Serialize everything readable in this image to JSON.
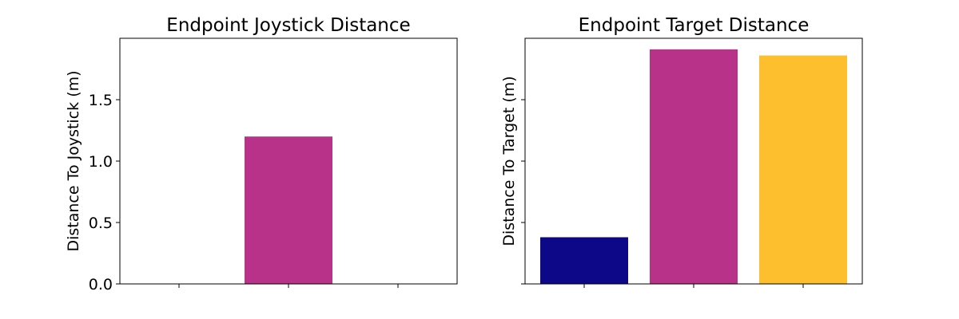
{
  "chart_data": [
    {
      "type": "bar",
      "title": "Endpoint Joystick Distance",
      "xlabel": "",
      "ylabel": "Distance To Joystick (m)",
      "categories": [
        "",
        "",
        ""
      ],
      "values": [
        0.0,
        1.2,
        0.0
      ],
      "colors": [
        "#0d0887",
        "#b83289",
        "#fdbf2d"
      ],
      "ylim": [
        0,
        2.0
      ],
      "yticks": [
        0.0,
        0.5,
        1.0,
        1.5
      ],
      "ytick_labels": [
        "0.0",
        "0.5",
        "1.0",
        "1.5"
      ],
      "grid": false,
      "legend": "none"
    },
    {
      "type": "bar",
      "title": "Endpoint Target Distance",
      "xlabel": "",
      "ylabel": "Distance To Target (m)",
      "categories": [
        "",
        "",
        ""
      ],
      "values": [
        0.38,
        1.91,
        1.86
      ],
      "colors": [
        "#0d0887",
        "#b83289",
        "#fdbf2d"
      ],
      "ylim": [
        0,
        2.0
      ],
      "yticks": [
        0.0,
        0.5,
        1.0,
        1.5
      ],
      "ytick_labels": [
        "",
        "",
        "",
        ""
      ],
      "grid": false,
      "legend": "none"
    }
  ]
}
